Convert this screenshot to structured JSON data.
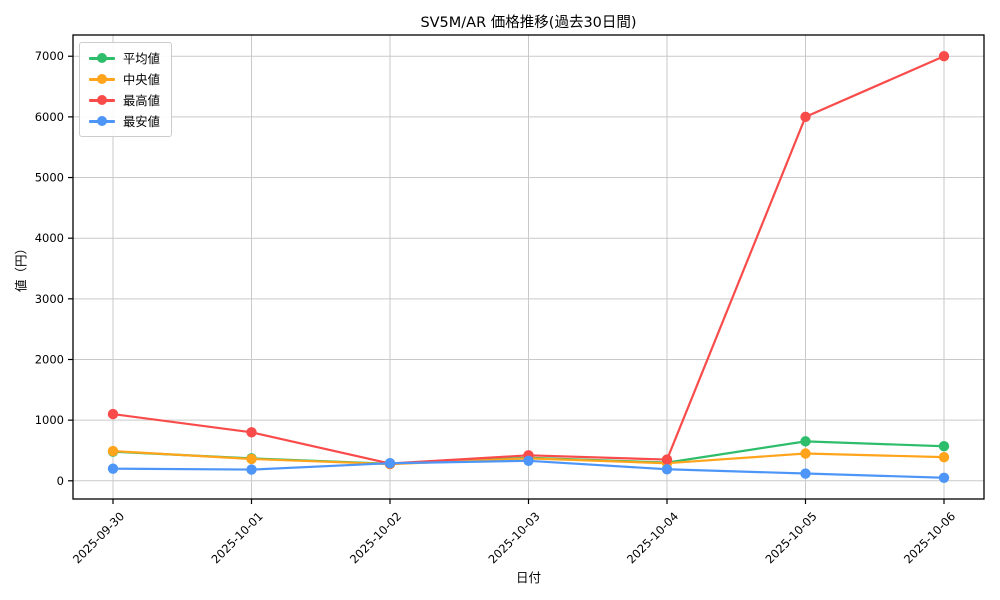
{
  "chart_data": {
    "type": "line",
    "title": "SV5M/AR 価格推移(過去30日間)",
    "xlabel": "日付",
    "ylabel": "値（円）",
    "categories": [
      "2025-09-30",
      "2025-10-01",
      "2025-10-02",
      "2025-10-03",
      "2025-10-04",
      "2025-10-05",
      "2025-10-06"
    ],
    "yticks": [
      0,
      1000,
      2000,
      3000,
      4000,
      5000,
      6000,
      7000
    ],
    "ylim": [
      -300,
      7350
    ],
    "grid": true,
    "grid_color": "#c9c9c9",
    "legend_position": "upper-left",
    "series": [
      {
        "key": "average",
        "name": "平均値",
        "color": "#2EBD6B",
        "values": [
          480,
          370,
          280,
          380,
          300,
          650,
          570
        ]
      },
      {
        "key": "median",
        "name": "中央値",
        "color": "#FFA41B",
        "values": [
          490,
          360,
          275,
          370,
          290,
          450,
          390
        ]
      },
      {
        "key": "max",
        "name": "最高値",
        "color": "#FA4B4B",
        "values": [
          1100,
          800,
          285,
          420,
          350,
          6000,
          7000
        ]
      },
      {
        "key": "min",
        "name": "最安値",
        "color": "#4D96F8",
        "values": [
          200,
          185,
          290,
          330,
          190,
          120,
          50
        ]
      }
    ]
  }
}
